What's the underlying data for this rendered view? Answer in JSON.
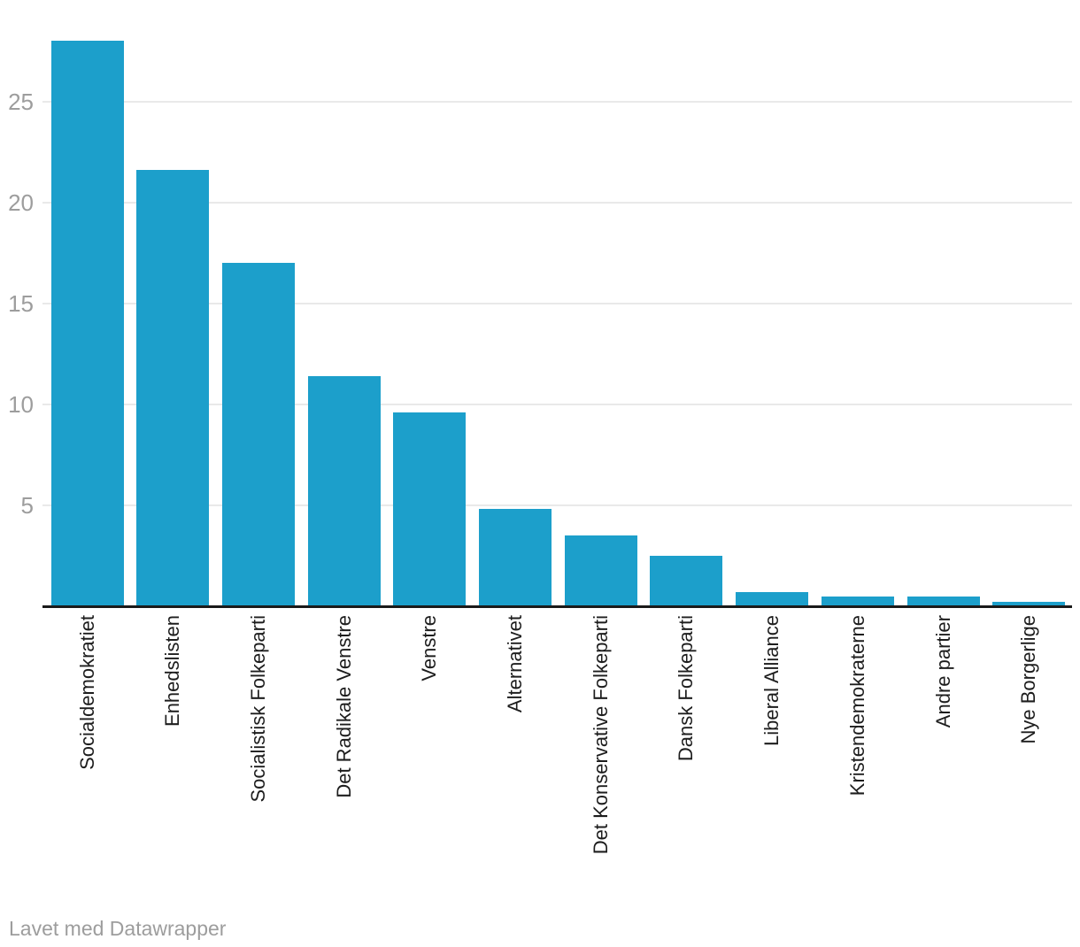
{
  "chart_data": {
    "type": "bar",
    "categories": [
      "Socialdemokratiet",
      "Enhedslisten",
      "Socialistisk Folkeparti",
      "Det Radikale Venstre",
      "Venstre",
      "Alternativet",
      "Det Konservative Folkeparti",
      "Dansk Folkeparti",
      "Liberal Alliance",
      "Kristendemokraterne",
      "Andre partier",
      "Nye Borgerlige"
    ],
    "values": [
      28.0,
      21.6,
      17.0,
      11.4,
      9.6,
      4.8,
      3.5,
      2.5,
      0.7,
      0.5,
      0.5,
      0.2
    ],
    "title": "",
    "xlabel": "",
    "ylabel": "",
    "ylim": [
      0,
      28
    ],
    "yticks": [
      5,
      10,
      15,
      20,
      25
    ],
    "grid": "horizontal",
    "legend_position": "none",
    "bar_color": "#1c9fcb",
    "gridline_color": "#e9e9e9",
    "axis_line_color": "#1a1a1a",
    "ytick_color": "#9d9d9d",
    "xlabel_color": "#1d1d1d"
  },
  "footer": {
    "credit": "Lavet med Datawrapper",
    "color": "#9d9d9d"
  }
}
